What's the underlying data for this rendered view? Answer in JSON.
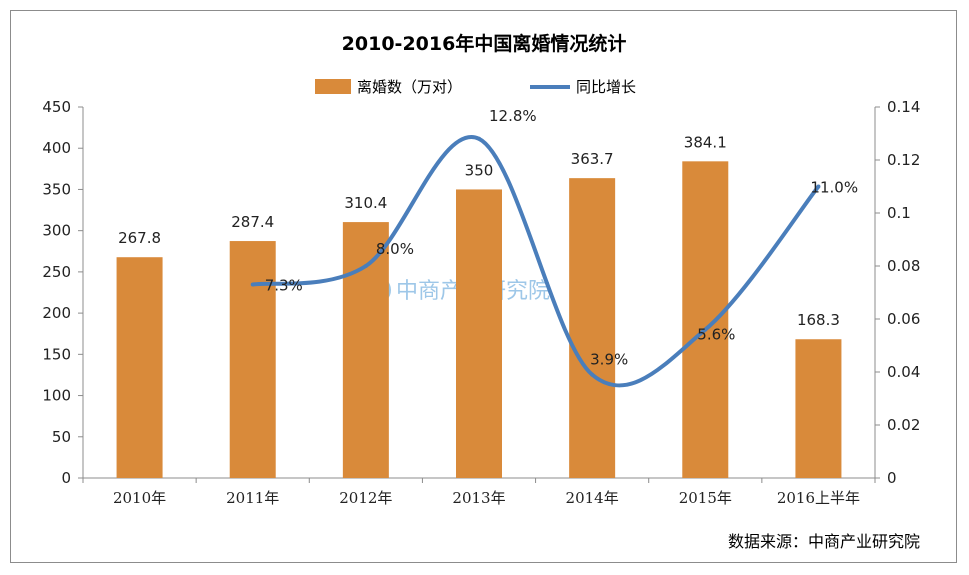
{
  "chart_data": {
    "type": "bar",
    "title": "2010-2016年中国离婚情况统计",
    "categories": [
      "2010年",
      "2011年",
      "2012年",
      "2013年",
      "2014年",
      "2015年",
      "2016上半年"
    ],
    "series": [
      {
        "name": "离婚数（万对）",
        "type": "bar",
        "axis": "left",
        "color": "#d98a3a",
        "values": [
          267.8,
          287.4,
          310.4,
          350,
          363.7,
          384.1,
          168.3
        ],
        "labels": [
          "267.8",
          "287.4",
          "310.4",
          "350",
          "363.7",
          "384.1",
          "168.3"
        ]
      },
      {
        "name": "同比增长",
        "type": "line",
        "axis": "right",
        "color": "#4a7ebb",
        "values": [
          null,
          0.073,
          0.08,
          0.128,
          0.039,
          0.056,
          0.11
        ],
        "labels": [
          "",
          "7.3%",
          "8.0%",
          "12.8%",
          "3.9%",
          "5.6%",
          "11.0%"
        ]
      }
    ],
    "y_left": {
      "ylim": [
        0,
        450
      ],
      "ticks": [
        "0",
        "50",
        "100",
        "150",
        "200",
        "250",
        "300",
        "350",
        "400",
        "450"
      ]
    },
    "y_right": {
      "ylim": [
        0,
        0.14
      ],
      "ticks": [
        "0",
        "0.02",
        "0.04",
        "0.06",
        "0.08",
        "0.1",
        "0.12",
        "0.14"
      ]
    },
    "legend_position": "top",
    "grid": false
  },
  "watermark": {
    "text": "中商产业研究院"
  },
  "source": "数据来源：中商产业研究院"
}
